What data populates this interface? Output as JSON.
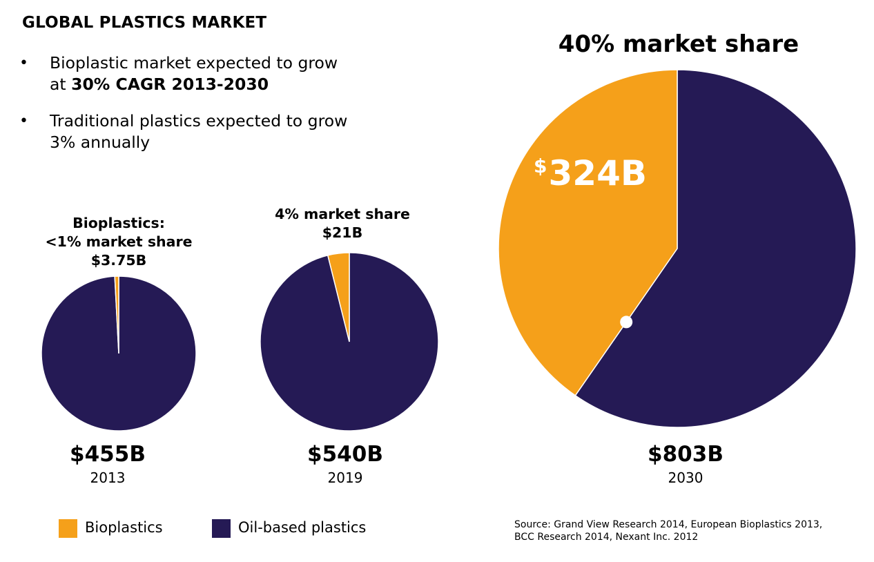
{
  "title": "GLOBAL PLASTICS MARKET",
  "bullets": [
    {
      "line1": "Bioplastic market expected to grow",
      "line2_prefix": "at ",
      "line2_bold": "30% CAGR 2013-2030"
    },
    {
      "line1": "Traditional plastics expected to grow",
      "line2": "3% annually"
    }
  ],
  "bullet_symbol": "•",
  "colors": {
    "bioplastics": "#f5a01a",
    "oil_based": "#251a55"
  },
  "chart_data": [
    {
      "type": "pie",
      "year": "2013",
      "total_label": "$455B",
      "label_lines": [
        "Bioplastics:",
        "<1% market share",
        "$3.75B"
      ],
      "slices": [
        {
          "name": "Bioplastics",
          "value": 3.75
        },
        {
          "name": "Oil-based plastics",
          "value": 451.25
        }
      ]
    },
    {
      "type": "pie",
      "year": "2019",
      "total_label": "$540B",
      "label_lines": [
        "4% market share",
        "$21B"
      ],
      "slices": [
        {
          "name": "Bioplastics",
          "value": 21
        },
        {
          "name": "Oil-based plastics",
          "value": 519
        }
      ]
    },
    {
      "type": "pie",
      "year": "2030",
      "total_label": "$803B",
      "label_lines": [
        "40% market share"
      ],
      "inner_label": {
        "currency": "$",
        "amount": "324B"
      },
      "slices": [
        {
          "name": "Bioplastics",
          "value": 324
        },
        {
          "name": "Oil-based plastics",
          "value": 479
        }
      ]
    }
  ],
  "legend": [
    {
      "name": "Bioplastics",
      "color": "#f5a01a"
    },
    {
      "name": "Oil-based plastics",
      "color": "#251a55"
    }
  ],
  "source_lines": [
    "Source: Grand View Research 2014, European Bioplastics 2013,",
    "BCC Research 2014, Nexant Inc. 2012"
  ]
}
